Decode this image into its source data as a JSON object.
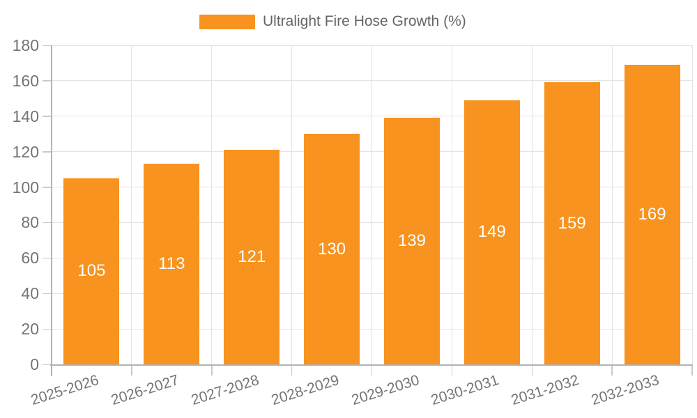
{
  "legend": {
    "label": "Ultralight Fire Hose Growth (%)"
  },
  "chart_data": {
    "type": "bar",
    "title": "Ultralight Fire Hose Growth (%)",
    "categories": [
      "2025-2026",
      "2026-2027",
      "2027-2028",
      "2028-2029",
      "2029-2030",
      "2030-2031",
      "2031-2032",
      "2032-2033"
    ],
    "series": [
      {
        "name": "Ultralight Fire Hose Growth (%)",
        "values": [
          105,
          113,
          121,
          130,
          139,
          149,
          159,
          169
        ]
      }
    ],
    "value_labels": [
      105,
      113,
      121,
      130,
      139,
      149,
      159,
      169
    ],
    "xlabel": "",
    "ylabel": "",
    "ylim": [
      0,
      180
    ],
    "ytick_step": 20,
    "ytick_labels": [
      "0",
      "20",
      "40",
      "60",
      "80",
      "100",
      "120",
      "140",
      "160",
      "180"
    ],
    "grid": true,
    "legend_position": "top-center",
    "x_label_rotation_deg": -17.5,
    "colors": {
      "bar": "#f7931e",
      "value_label": "#ffffff",
      "axis_line": "#b3b3b3",
      "tick_mark": "#c9c9c9",
      "grid_line": "#e3e3e3",
      "axis_text": "#757575",
      "legend_text": "#666666",
      "background": "#ffffff"
    }
  }
}
